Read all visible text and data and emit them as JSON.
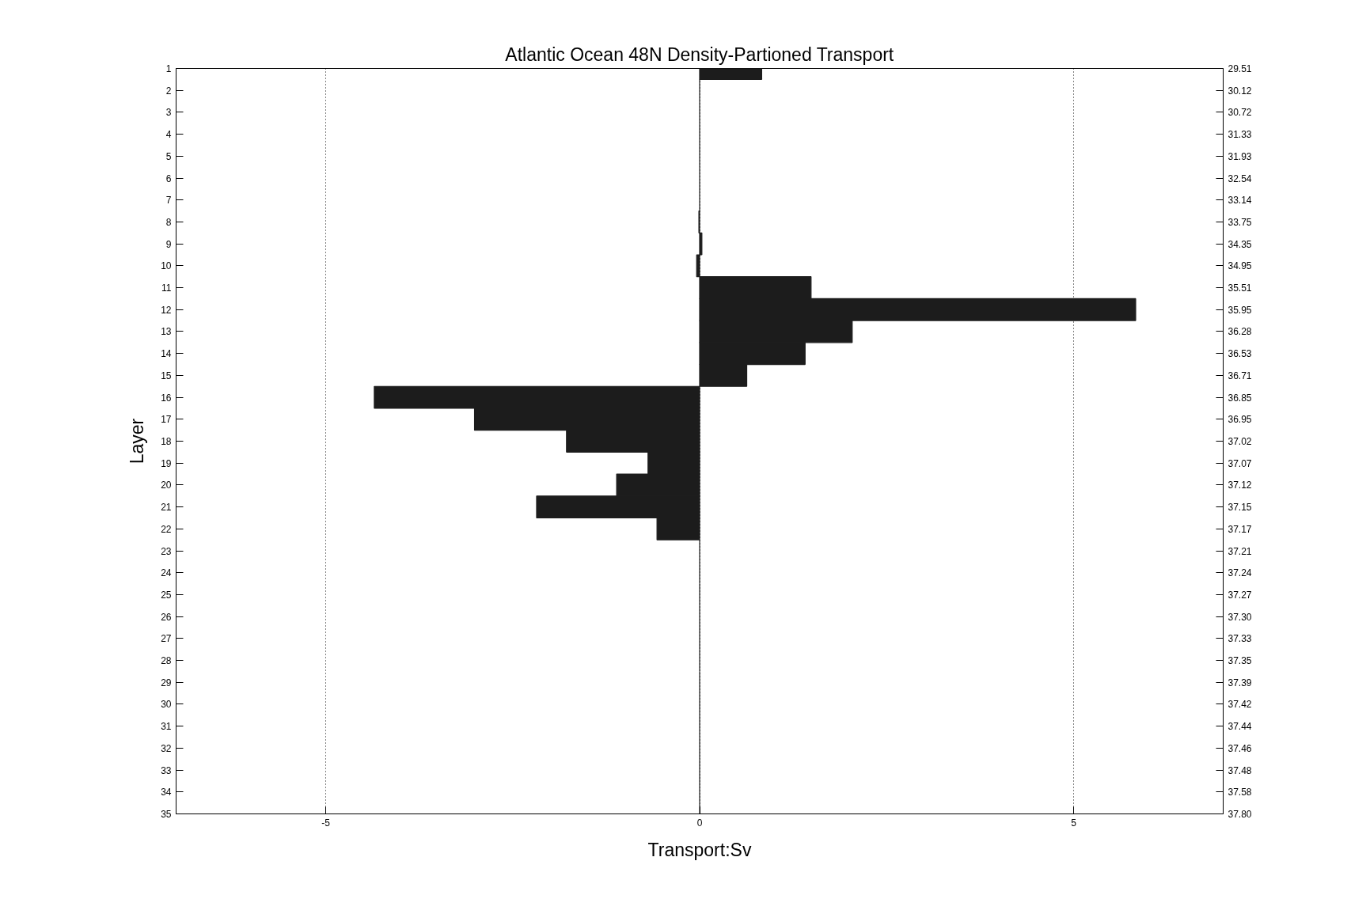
{
  "chart_data": {
    "type": "bar",
    "orientation": "horizontal",
    "title": "Atlantic Ocean 48N Density-Partioned Transport",
    "xlabel": "Transport:Sv",
    "ylabel": "Layer",
    "categories": [
      "1",
      "2",
      "3",
      "4",
      "5",
      "6",
      "7",
      "8",
      "9",
      "10",
      "11",
      "12",
      "13",
      "14",
      "15",
      "16",
      "17",
      "18",
      "19",
      "20",
      "21",
      "22",
      "23",
      "24",
      "25",
      "26",
      "27",
      "28",
      "29",
      "30",
      "31",
      "32",
      "33",
      "34",
      "35"
    ],
    "y2_categories": [
      "29.51",
      "30.12",
      "30.72",
      "31.33",
      "31.93",
      "32.54",
      "33.14",
      "33.75",
      "34.35",
      "34.95",
      "35.51",
      "35.95",
      "36.28",
      "36.53",
      "36.71",
      "36.85",
      "36.95",
      "37.02",
      "37.07",
      "37.12",
      "37.15",
      "37.17",
      "37.21",
      "37.24",
      "37.27",
      "37.30",
      "37.33",
      "37.35",
      "37.39",
      "37.42",
      "37.44",
      "37.46",
      "37.48",
      "37.58",
      "37.80"
    ],
    "values": [
      0.83,
      0,
      0,
      0,
      0,
      0,
      0,
      -0.01,
      0.03,
      -0.04,
      1.49,
      5.83,
      2.04,
      1.41,
      0.63,
      -4.35,
      -3.01,
      -1.78,
      -0.69,
      -1.11,
      -2.18,
      -0.57,
      0,
      0,
      0,
      0,
      0,
      0,
      0,
      0,
      0,
      0,
      0,
      0,
      0
    ],
    "color": "#1c1c1c",
    "xlim": [
      -7,
      7
    ],
    "xticks": [
      -5,
      0,
      5
    ],
    "grid": "x"
  }
}
